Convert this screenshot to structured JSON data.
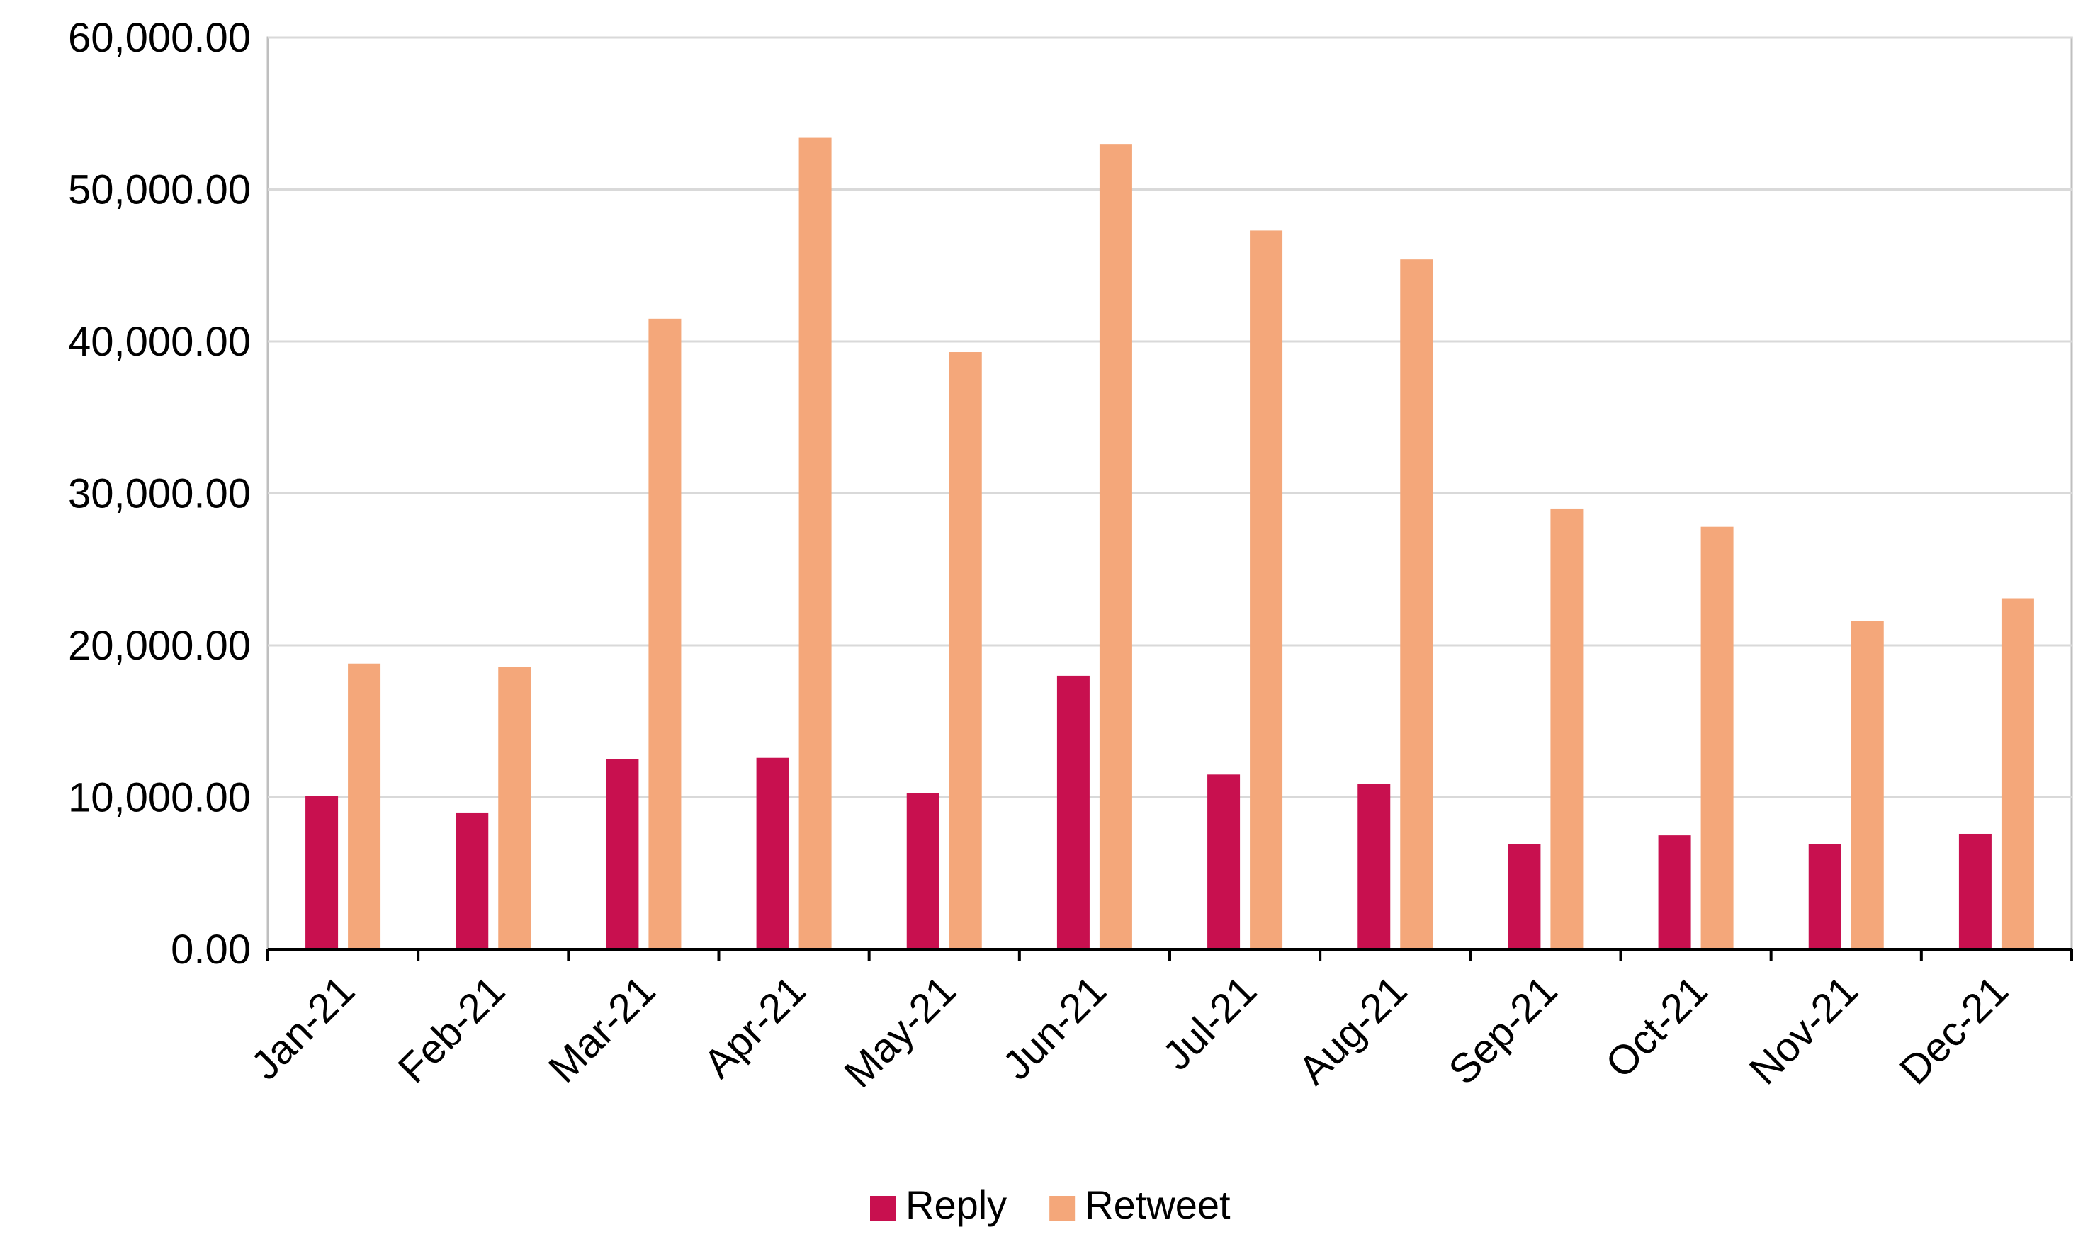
{
  "chart_data": {
    "type": "bar",
    "title": "",
    "xlabel": "",
    "ylabel": "",
    "categories": [
      "Jan-21",
      "Feb-21",
      "Mar-21",
      "Apr-21",
      "May-21",
      "Jun-21",
      "Jul-21",
      "Aug-21",
      "Sep-21",
      "Oct-21",
      "Nov-21",
      "Dec-21"
    ],
    "series": [
      {
        "name": "Reply",
        "color": "#c8104f",
        "values": [
          10100,
          9000,
          12500,
          12600,
          10300,
          18000,
          11500,
          10900,
          6900,
          7500,
          6900,
          7600
        ]
      },
      {
        "name": "Retweet",
        "color": "#f4a77a",
        "values": [
          18800,
          18600,
          41500,
          53400,
          39300,
          53000,
          47300,
          45400,
          29000,
          27800,
          21600,
          23100
        ]
      }
    ],
    "ylim": [
      0,
      60000
    ],
    "yticks": [
      "0.00",
      "10,000.00",
      "20,000.00",
      "30,000.00",
      "40,000.00",
      "50,000.00",
      "60,000.00"
    ],
    "grid": true,
    "legend_position": "bottom"
  }
}
